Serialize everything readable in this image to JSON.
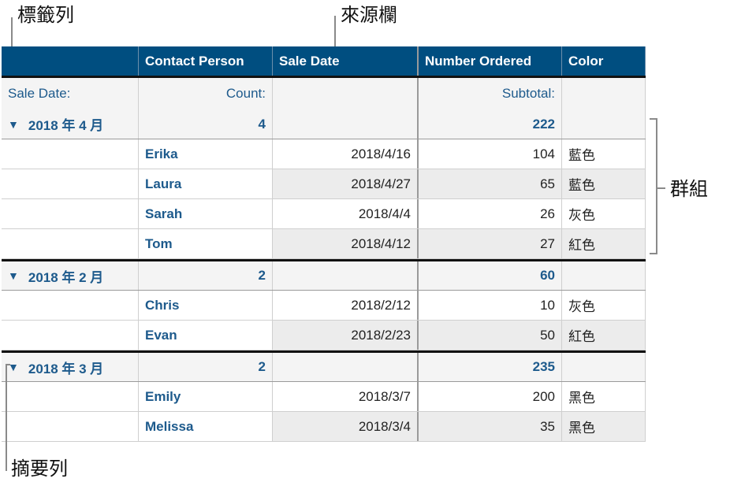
{
  "callouts": {
    "label_row": "標籤列",
    "source_column": "來源欄",
    "group": "群組",
    "summary_row": "摘要列"
  },
  "colors": {
    "header_bg": "#004e80",
    "accent_text": "#1d5a8c",
    "summary_bg": "#f4f4f4",
    "shade": "#ececec"
  },
  "header": [
    "",
    "Contact Person",
    "Sale Date",
    "Number Ordered",
    "Color"
  ],
  "label_row": {
    "group_label": "Sale Date:",
    "count_label": "Count:",
    "subtotal_label": "Subtotal:"
  },
  "groups": [
    {
      "name": "2018 年 4 月",
      "count": "4",
      "subtotal": "222",
      "show_labels": true,
      "rows": [
        [
          "Erika",
          "2018/4/16",
          "104",
          "藍色"
        ],
        [
          "Laura",
          "2018/4/27",
          "65",
          "藍色"
        ],
        [
          "Sarah",
          "2018/4/4",
          "26",
          "灰色"
        ],
        [
          "Tom",
          "2018/4/12",
          "27",
          "紅色"
        ]
      ]
    },
    {
      "name": "2018 年 2 月",
      "count": "2",
      "subtotal": "60",
      "show_labels": false,
      "rows": [
        [
          "Chris",
          "2018/2/12",
          "10",
          "灰色"
        ],
        [
          "Evan",
          "2018/2/23",
          "50",
          "紅色"
        ]
      ]
    },
    {
      "name": "2018 年 3 月",
      "count": "2",
      "subtotal": "235",
      "show_labels": false,
      "rows": [
        [
          "Emily",
          "2018/3/7",
          "200",
          "黑色"
        ],
        [
          "Melissa",
          "2018/3/4",
          "35",
          "黑色"
        ]
      ]
    }
  ],
  "icons": {
    "disclosure": "triangle-down-icon"
  }
}
